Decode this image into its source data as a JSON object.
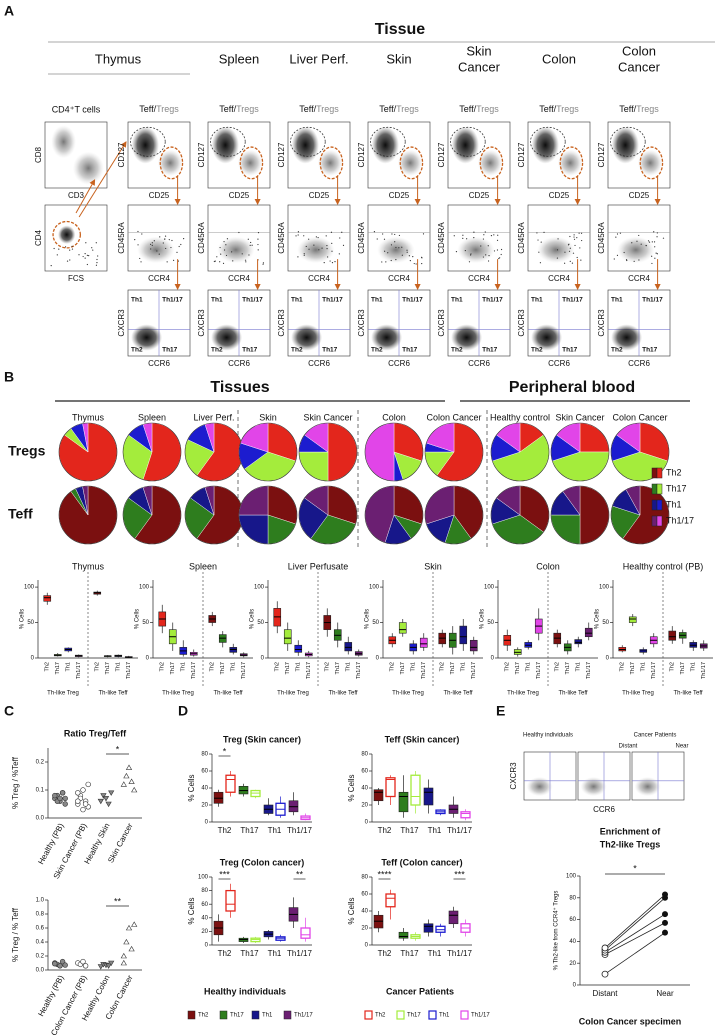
{
  "panel_a": {
    "label": "A",
    "title": "Tissue",
    "tissues": [
      [
        "Thymus"
      ],
      [
        "Spleen"
      ],
      [
        "Liver Perf."
      ],
      [
        "Skin"
      ],
      [
        "Skin",
        "Cancer"
      ],
      [
        "Colon"
      ],
      [
        "Colon",
        "Cancer"
      ]
    ],
    "first_column": {
      "title": "CD4⁺T cells",
      "plots": [
        {
          "x": "CD3",
          "y": "CD8"
        },
        {
          "x": "FCS",
          "y": "CD4"
        }
      ]
    },
    "column_title": {
      "teff": "Teff/",
      "tregs": "Tregs"
    },
    "plots": [
      {
        "x": "CD25",
        "y": "CD127"
      },
      {
        "x": "CCR4",
        "y": "CD45RA"
      },
      {
        "x": "CCR6",
        "y": "CXCR3"
      }
    ],
    "quadrants": [
      "Th1",
      "Th1/17",
      "Th2",
      "Th17"
    ]
  },
  "panel_b": {
    "label": "B",
    "groups": [
      "Tissues",
      "Peripheral blood"
    ],
    "pie_labels": [
      "Thymus",
      "Spleen",
      "Liver Perf.",
      "Skin",
      "Skin Cancer",
      "Colon",
      "Colon Cancer",
      "Healthy control",
      "Skin Cancer",
      "Colon Cancer"
    ],
    "rows": [
      "Tregs",
      "Teff"
    ],
    "legend": {
      "names": [
        "Th2",
        "Th17",
        "Th1",
        "Th1/17"
      ],
      "treg_colors": [
        "#e3261c",
        "#a4ec3c",
        "#1c1ccf",
        "#e145e8"
      ],
      "teff_colors": [
        "#7b1010",
        "#2e7d1e",
        "#17178a",
        "#6b1f72"
      ]
    },
    "tregs": [
      [
        85,
        5,
        7,
        3
      ],
      [
        55,
        30,
        10,
        5
      ],
      [
        60,
        22,
        13,
        5
      ],
      [
        30,
        35,
        15,
        20
      ],
      [
        50,
        25,
        10,
        15
      ],
      [
        30,
        15,
        5,
        50
      ],
      [
        60,
        15,
        5,
        20
      ],
      [
        15,
        55,
        15,
        15
      ],
      [
        25,
        45,
        15,
        15
      ],
      [
        30,
        40,
        15,
        15
      ]
    ],
    "teff": [
      [
        90,
        3,
        4,
        3
      ],
      [
        60,
        25,
        10,
        5
      ],
      [
        60,
        25,
        10,
        5
      ],
      [
        30,
        20,
        25,
        25
      ],
      [
        30,
        30,
        25,
        15
      ],
      [
        30,
        10,
        15,
        45
      ],
      [
        40,
        15,
        15,
        30
      ],
      [
        35,
        35,
        15,
        15
      ],
      [
        50,
        25,
        15,
        10
      ],
      [
        60,
        20,
        12,
        8
      ]
    ],
    "y_label": "% Cells",
    "ylim": [
      0,
      110
    ],
    "yticks": [
      0,
      50,
      100
    ],
    "group_labels": [
      "Th-like Treg",
      "Th-like Teff"
    ],
    "box_panels": [
      {
        "title": "Thymus",
        "treg": [
          [
            75,
            80,
            85,
            88,
            92
          ],
          [
            2,
            3,
            4,
            5,
            7
          ],
          [
            8,
            10,
            12,
            14,
            15
          ],
          [
            1,
            2,
            3,
            4,
            5
          ]
        ],
        "teff": [
          [
            88,
            90,
            92,
            93,
            95
          ],
          [
            1,
            2,
            3,
            3,
            4
          ],
          [
            1,
            2,
            3,
            4,
            5
          ],
          [
            0,
            1,
            1,
            2,
            3
          ]
        ]
      },
      {
        "title": "Spleen",
        "treg": [
          [
            35,
            45,
            55,
            65,
            75
          ],
          [
            10,
            20,
            30,
            40,
            50
          ],
          [
            2,
            5,
            10,
            15,
            25
          ],
          [
            2,
            4,
            6,
            8,
            12
          ]
        ],
        "teff": [
          [
            45,
            50,
            55,
            60,
            65
          ],
          [
            15,
            22,
            28,
            33,
            38
          ],
          [
            5,
            8,
            12,
            15,
            20
          ],
          [
            1,
            3,
            4,
            6,
            8
          ]
        ]
      },
      {
        "title": "Liver Perfusate",
        "treg": [
          [
            35,
            45,
            58,
            70,
            80
          ],
          [
            10,
            20,
            28,
            40,
            50
          ],
          [
            3,
            8,
            12,
            18,
            25
          ],
          [
            1,
            3,
            5,
            7,
            10
          ]
        ],
        "teff": [
          [
            30,
            40,
            50,
            60,
            70
          ],
          [
            15,
            25,
            32,
            40,
            50
          ],
          [
            5,
            10,
            15,
            22,
            30
          ],
          [
            2,
            4,
            6,
            9,
            12
          ]
        ]
      },
      {
        "title": "Skin",
        "treg": [
          [
            15,
            20,
            25,
            30,
            35
          ],
          [
            30,
            35,
            40,
            50,
            55
          ],
          [
            5,
            10,
            15,
            20,
            25
          ],
          [
            10,
            15,
            20,
            28,
            35
          ]
        ],
        "teff": [
          [
            15,
            20,
            28,
            35,
            40
          ],
          [
            5,
            15,
            25,
            35,
            45
          ],
          [
            10,
            20,
            30,
            45,
            55
          ],
          [
            5,
            10,
            15,
            25,
            30
          ]
        ]
      },
      {
        "title": "Colon",
        "treg": [
          [
            10,
            18,
            25,
            32,
            40
          ],
          [
            2,
            5,
            8,
            12,
            15
          ],
          [
            12,
            15,
            18,
            22,
            25
          ],
          [
            25,
            35,
            45,
            55,
            70
          ]
        ],
        "teff": [
          [
            15,
            20,
            28,
            35,
            40
          ],
          [
            5,
            10,
            15,
            20,
            25
          ],
          [
            15,
            20,
            22,
            26,
            30
          ],
          [
            25,
            30,
            35,
            42,
            50
          ]
        ]
      },
      {
        "title": "Healthy control (PB)",
        "treg": [
          [
            8,
            10,
            12,
            15,
            18
          ],
          [
            45,
            50,
            55,
            58,
            62
          ],
          [
            5,
            8,
            10,
            12,
            15
          ],
          [
            15,
            20,
            25,
            30,
            35
          ]
        ],
        "teff": [
          [
            20,
            25,
            30,
            38,
            45
          ],
          [
            20,
            28,
            32,
            36,
            40
          ],
          [
            10,
            15,
            18,
            22,
            25
          ],
          [
            10,
            14,
            17,
            20,
            25
          ]
        ]
      }
    ]
  },
  "panel_c": {
    "label": "C",
    "charts": [
      {
        "title": "Ratio Treg/Teff",
        "y_label": "% Treg / %Teff",
        "categories": [
          "Healthy (PB)",
          "Skin Cancer (PB)",
          "Healthy Skin",
          "Skin Cancer"
        ],
        "values": [
          [
            0.07,
            0.08,
            0.06,
            0.09,
            0.07,
            0.08,
            0.06,
            0.07,
            0.09,
            0.05
          ],
          [
            0.05,
            0.08,
            0.1,
            0.06,
            0.04,
            0.09,
            0.07,
            0.03,
            0.05,
            0.12,
            0.06
          ],
          [
            0.06,
            0.08,
            0.07,
            0.05,
            0.09
          ],
          [
            0.12,
            0.15,
            0.18,
            0.13,
            0.1
          ]
        ],
        "ylim": [
          0,
          0.25
        ],
        "yticks": [
          {
            "value": 0,
            "label": "0.0"
          },
          0.1,
          0.2
        ],
        "significance": "*"
      },
      {
        "y_label": "% Treg / % Teff",
        "categories": [
          "Healthy (PB)",
          "Colon Cancer (PB)",
          "Healthy Colon",
          "Colon Cancer"
        ],
        "values": [
          [
            0.1,
            0.08,
            0.06,
            0.12,
            0.07,
            0.09
          ],
          [
            0.1,
            0.08,
            0.12,
            0.06
          ],
          [
            0.05,
            0.08,
            0.07,
            0.06,
            0.1
          ],
          [
            0.2,
            0.4,
            0.6,
            0.3,
            0.65,
            0.1
          ]
        ],
        "ylim": [
          0,
          1.0
        ],
        "yticks": [
          {
            "value": 0,
            "label": "0.0"
          },
          0.2,
          0.4,
          0.6,
          0.8,
          {
            "value": 1,
            "label": "1.0"
          }
        ],
        "significance": "**"
      }
    ]
  },
  "panel_d": {
    "label": "D",
    "y_label": "% Cells",
    "categories": [
      "Th2",
      "Th17",
      "Th1",
      "Th1/17"
    ],
    "legend": {
      "healthy": "Healthy individuals",
      "cancer": "Cancer Patients"
    },
    "panels": [
      {
        "title": "Treg (Skin cancer)",
        "ylim": [
          0,
          80
        ],
        "yticks": [
          0,
          20,
          40,
          60,
          80
        ],
        "stars": [
          "*",
          null,
          null,
          null
        ],
        "healthy": [
          [
            18,
            22,
            28,
            35,
            38
          ],
          [
            30,
            33,
            37,
            42,
            45
          ],
          [
            8,
            10,
            15,
            20,
            28
          ],
          [
            8,
            12,
            18,
            25,
            35
          ]
        ],
        "cancer": [
          [
            30,
            35,
            50,
            55,
            60
          ],
          [
            28,
            30,
            34,
            37,
            38
          ],
          [
            5,
            8,
            15,
            22,
            30
          ],
          [
            2,
            3,
            5,
            7,
            10
          ]
        ]
      },
      {
        "title": "Teff (Skin cancer)",
        "ylim": [
          0,
          80
        ],
        "yticks": [
          0,
          20,
          40,
          60,
          80
        ],
        "stars": [
          null,
          null,
          null,
          null
        ],
        "healthy": [
          [
            20,
            25,
            35,
            38,
            40
          ],
          [
            5,
            12,
            30,
            35,
            55
          ],
          [
            10,
            20,
            35,
            40,
            50
          ],
          [
            5,
            10,
            15,
            20,
            30
          ]
        ],
        "cancer": [
          [
            20,
            30,
            50,
            52,
            55
          ],
          [
            10,
            20,
            30,
            55,
            60
          ],
          [
            8,
            10,
            12,
            14,
            15
          ],
          [
            2,
            5,
            10,
            12,
            15
          ]
        ]
      },
      {
        "title": "Treg (Colon cancer)",
        "ylim": [
          0,
          100
        ],
        "yticks": [
          0,
          20,
          40,
          60,
          80,
          100
        ],
        "stars": [
          "***",
          null,
          null,
          "**"
        ],
        "healthy": [
          [
            5,
            15,
            25,
            35,
            45
          ],
          [
            3,
            5,
            8,
            10,
            12
          ],
          [
            8,
            12,
            16,
            20,
            22
          ],
          [
            25,
            35,
            45,
            55,
            70
          ]
        ],
        "cancer": [
          [
            40,
            50,
            60,
            80,
            90
          ],
          [
            3,
            5,
            8,
            10,
            12
          ],
          [
            5,
            7,
            10,
            12,
            15
          ],
          [
            5,
            10,
            15,
            25,
            40
          ]
        ]
      },
      {
        "title": "Teff (Colon cancer)",
        "ylim": [
          0,
          80
        ],
        "yticks": [
          0,
          20,
          40,
          60,
          80
        ],
        "stars": [
          "****",
          null,
          null,
          "***"
        ],
        "healthy": [
          [
            15,
            20,
            28,
            35,
            40
          ],
          [
            5,
            8,
            10,
            15,
            20
          ],
          [
            10,
            15,
            22,
            25,
            30
          ],
          [
            20,
            25,
            35,
            40,
            45
          ]
        ],
        "cancer": [
          [
            30,
            45,
            55,
            60,
            65
          ],
          [
            5,
            8,
            10,
            12,
            15
          ],
          [
            10,
            15,
            18,
            22,
            25
          ],
          [
            10,
            15,
            20,
            25,
            30
          ]
        ]
      }
    ]
  },
  "panel_e": {
    "label": "E",
    "flow": {
      "groups": [
        "Healthy individuals",
        "Cancer Patients"
      ],
      "subgroups": [
        "Distant",
        "Near"
      ],
      "x": "CCR6",
      "y": "CXCR3"
    },
    "chart": {
      "title_lines": [
        "Enrichment of",
        "Th2-like Tregs"
      ],
      "y_label": "% Th2-like from CCR4⁺ Tregs",
      "categories": [
        "Distant",
        "Near"
      ],
      "x_label": "Colon Cancer specimen",
      "ylim": [
        0,
        100
      ],
      "yticks": [
        0,
        20,
        40,
        60,
        80,
        100
      ],
      "distant": [
        10,
        28,
        30,
        32,
        34
      ],
      "near": [
        48,
        57,
        65,
        80,
        83
      ],
      "significance": "*"
    }
  }
}
